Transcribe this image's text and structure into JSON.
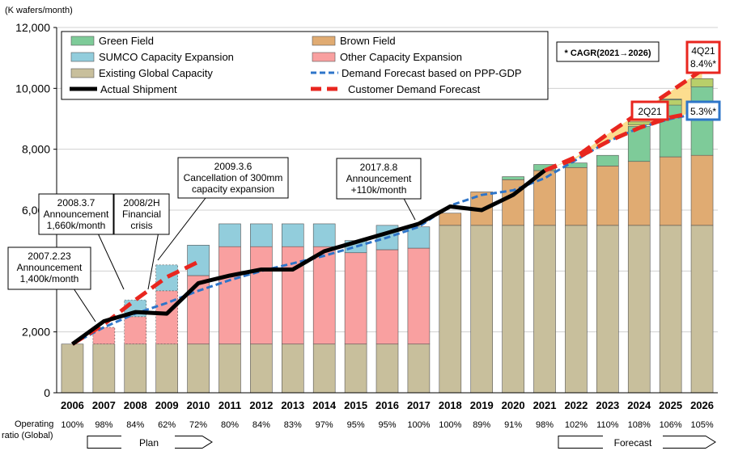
{
  "chart_data": {
    "type": "bar",
    "title": "",
    "y_unit_label": "(K wafers/month)",
    "ylim": [
      0,
      12000
    ],
    "yticks": [
      0,
      2000,
      4000,
      6000,
      8000,
      10000,
      12000
    ],
    "ytick_labels": [
      "0",
      "2,000",
      "4,000",
      "6,000",
      "8,000",
      "10,000",
      "12,000"
    ],
    "categories": [
      "2006",
      "2007",
      "2008",
      "2009",
      "2010",
      "2011",
      "2012",
      "2013",
      "2014",
      "2015",
      "2016",
      "2017",
      "2018",
      "2019",
      "2020",
      "2021",
      "2022",
      "2023",
      "2024",
      "2025",
      "2026"
    ],
    "operating_ratio_label": "Operating ratio (Global)",
    "operating_ratio_label_lines": [
      "Operating",
      "ratio (Global)"
    ],
    "operating_ratio": [
      "100%",
      "98%",
      "84%",
      "62%",
      "72%",
      "80%",
      "84%",
      "83%",
      "97%",
      "95%",
      "95%",
      "100%",
      "100%",
      "89%",
      "91%",
      "98%",
      "102%",
      "110%",
      "108%",
      "106%",
      "105%"
    ],
    "series": [
      {
        "name": "Existing Global Capacity",
        "color": "#c8bf9c",
        "values": [
          1600,
          1600,
          1600,
          1600,
          1600,
          1600,
          1600,
          1600,
          1600,
          1600,
          1600,
          1600,
          5500,
          5500,
          5500,
          5500,
          5500,
          5500,
          5500,
          5500,
          5500
        ]
      },
      {
        "name": "Other Capacity Expansion",
        "color": "#f9a0a0",
        "values": [
          0,
          550,
          900,
          1750,
          2250,
          3200,
          3200,
          3200,
          3200,
          3000,
          3100,
          3150,
          0,
          0,
          0,
          0,
          0,
          0,
          0,
          0,
          0
        ]
      },
      {
        "name": "SUMCO Capacity Expansion",
        "color": "#92cddc",
        "values": [
          0,
          0,
          550,
          850,
          1000,
          750,
          750,
          750,
          750,
          400,
          800,
          700,
          0,
          0,
          0,
          0,
          0,
          0,
          0,
          0,
          0
        ]
      },
      {
        "name": "Brown Field",
        "color": "#e0ab72",
        "values": [
          0,
          0,
          0,
          0,
          0,
          0,
          0,
          0,
          0,
          0,
          0,
          0,
          400,
          1100,
          1500,
          1800,
          1900,
          1950,
          2100,
          2250,
          2300
        ]
      },
      {
        "name": "Green Field",
        "color": "#7ecb99",
        "values": [
          0,
          0,
          0,
          0,
          0,
          0,
          0,
          0,
          0,
          0,
          0,
          0,
          0,
          0,
          100,
          200,
          150,
          350,
          1150,
          1900,
          2500
        ]
      }
    ],
    "top_segments": [
      {
        "year": "2024",
        "color": "#b8cf6a",
        "bottom": 8800,
        "top": 8900
      },
      {
        "year": "2025",
        "color": "#b8cf6a",
        "bottom": 9450,
        "top": 9620
      },
      {
        "year": "2026",
        "color": "#b8cf6a",
        "bottom": 10050,
        "top": 10320
      }
    ],
    "actual_shipment": {
      "name": "Actual Shipment",
      "color": "#000000",
      "x": [
        "2006",
        "2007",
        "2008",
        "2009",
        "2010",
        "2011",
        "2012",
        "2013",
        "2014",
        "2015",
        "2016",
        "2017",
        "2018",
        "2019",
        "2020",
        "2021"
      ],
      "values": [
        1600,
        2350,
        2650,
        2600,
        3600,
        3850,
        4050,
        4050,
        4650,
        4950,
        5250,
        5550,
        6120,
        6000,
        6500,
        7300
      ]
    },
    "demand_forecast_ppp_gdp": {
      "name": "Demand Forecast based on PPP-GDP",
      "color": "#2e75c9",
      "x": [
        "2006",
        "2007",
        "2008",
        "2009",
        "2010",
        "2011",
        "2012",
        "2013",
        "2014",
        "2015",
        "2016",
        "2017",
        "2018",
        "2019",
        "2020",
        "2021",
        "2022",
        "2023",
        "2024",
        "2025",
        "2026"
      ],
      "values": [
        1600,
        2150,
        2600,
        2950,
        3350,
        3700,
        4000,
        4250,
        4500,
        4800,
        5100,
        5450,
        6150,
        6500,
        6650,
        7050,
        7650,
        8250,
        8700,
        9000,
        9200
      ]
    },
    "customer_demand_forecast": {
      "name": "Customer Demand Forecast",
      "color": "#e8261f",
      "x": [
        "2021",
        "2022",
        "2023",
        "2024",
        "2025",
        "2026"
      ],
      "values_2q21": [
        7300,
        7700,
        8250,
        8700,
        9050,
        9250
      ],
      "values_4q21": [
        7300,
        7750,
        8500,
        9200,
        9900,
        10600
      ]
    },
    "early_plan_dashed": {
      "color": "#e8261f",
      "x": [
        "2006",
        "2007",
        "2008",
        "2009",
        "2010"
      ],
      "values": [
        1600,
        2250,
        3050,
        3800,
        4300
      ]
    },
    "legend": [
      {
        "label": "Green Field",
        "type": "patch",
        "color": "#7ecb99"
      },
      {
        "label": "Brown Field",
        "type": "patch",
        "color": "#e0ab72"
      },
      {
        "label": "SUMCO Capacity Expansion",
        "type": "patch",
        "color": "#92cddc"
      },
      {
        "label": "Other Capacity Expansion",
        "type": "patch",
        "color": "#f9a0a0"
      },
      {
        "label": "Existing Global Capacity",
        "type": "patch",
        "color": "#c8bf9c"
      },
      {
        "label": "Demand Forecast based on PPP-GDP",
        "type": "blue-dash",
        "color": "#2e75c9"
      },
      {
        "label": "Actual Shipment",
        "type": "black-line",
        "color": "#000000"
      },
      {
        "label": "Customer Demand Forecast",
        "type": "red-dash",
        "color": "#e8261f"
      }
    ],
    "cagr_box": "* CAGR(2021→2026)",
    "tags": {
      "q4_21": {
        "label": "4Q21",
        "value": "8.4%*"
      },
      "q2_21": {
        "label": "2Q21"
      },
      "ppp": {
        "value": "5.3%*"
      }
    },
    "annotations": [
      {
        "id": "a2007",
        "lines": [
          "2007.2.23",
          "Announcement",
          "1,400k/month"
        ]
      },
      {
        "id": "a2008",
        "lines": [
          "2008.3.7",
          "Announcement",
          "1,660k/month"
        ]
      },
      {
        "id": "acrisis",
        "lines": [
          "2008/2H",
          "Financial",
          "crisis"
        ]
      },
      {
        "id": "a2009",
        "lines": [
          "2009.3.6",
          "Cancellation  of 300mm",
          "capacity  expansion"
        ]
      },
      {
        "id": "a2017",
        "lines": [
          "2017.8.8",
          "Announcement",
          "+110k/month"
        ]
      }
    ],
    "plan_label": "Plan",
    "forecast_label": "Forecast"
  }
}
